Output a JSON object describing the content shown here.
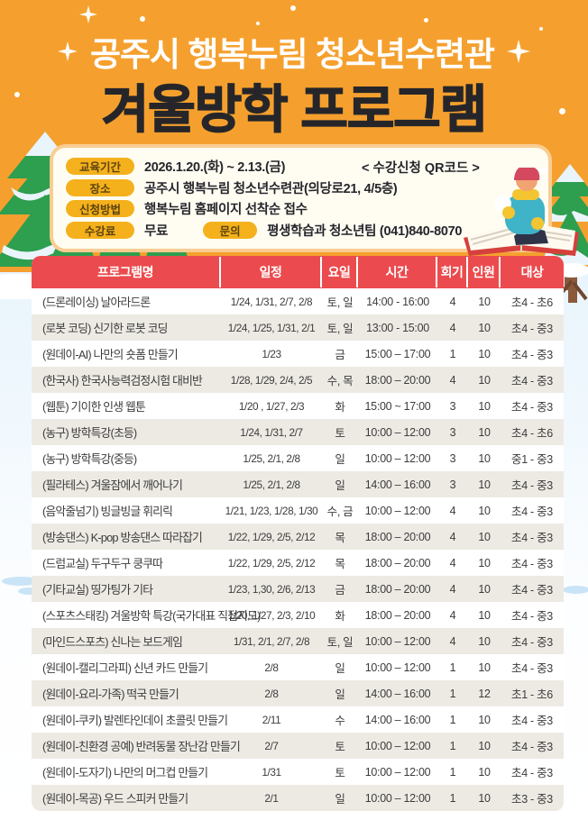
{
  "header": {
    "subtitle": "공주시 행복누림 청소년수련관",
    "title": "겨울방학 프로그램"
  },
  "info": {
    "items": [
      {
        "label": "교육기간",
        "value": "2026.1.20.(화) ~ 2.13.(금)"
      },
      {
        "label": "장소",
        "value": "공주시 행복누림 청소년수련관(의당로21, 4/5층)"
      },
      {
        "label": "신청방법",
        "value": "행복누림 홈페이지 선착순 접수"
      },
      {
        "label": "수강료",
        "value": "무료"
      }
    ],
    "qr_text": "< 수강신청 QR코드 >",
    "contact": {
      "label": "문의",
      "value": "평생학습과 청소년팀 (041)840-8070"
    }
  },
  "table": {
    "headers": [
      "프로그램명",
      "일정",
      "요일",
      "시간",
      "회기",
      "인원",
      "대상"
    ],
    "rows": [
      [
        "(드론레이싱) 날아라드론",
        "1/24, 1/31, 2/7, 2/8",
        "토, 일",
        "14:00 - 16:00",
        "4",
        "10",
        "초4 - 초6"
      ],
      [
        "(로봇 코딩) 신기한 로봇 코딩",
        "1/24, 1/25, 1/31, 2/1",
        "토, 일",
        "13:00 - 15:00",
        "4",
        "10",
        "초4 - 중3"
      ],
      [
        "(원데이-AI) 나만의 숏폼 만들기",
        "1/23",
        "금",
        "15:00 – 17:00",
        "1",
        "10",
        "초4 - 중3"
      ],
      [
        "(한국사) 한국사능력검정시험 대비반",
        "1/28, 1/29, 2/4, 2/5",
        "수, 목",
        "18:00 – 20:00",
        "4",
        "10",
        "초4 - 중3"
      ],
      [
        "(웹툰) 기이한 인생 웹툰",
        "1/20 , 1/27, 2/3",
        "화",
        "15:00 ~ 17:00",
        "3",
        "10",
        "초4 - 중3"
      ],
      [
        "(농구) 방학특강(초등)",
        "1/24, 1/31, 2/7",
        "토",
        "10:00 – 12:00",
        "3",
        "10",
        "초4 - 초6"
      ],
      [
        "(농구) 방학특강(중등)",
        "1/25, 2/1, 2/8",
        "일",
        "10:00 – 12:00",
        "3",
        "10",
        "중1 - 중3"
      ],
      [
        "(필라테스) 겨울잠에서 깨어나기",
        "1/25, 2/1, 2/8",
        "일",
        "14:00 – 16:00",
        "3",
        "10",
        "초4 - 중3"
      ],
      [
        "(음악줄넘기) 빙글빙글 휘리릭",
        "1/21, 1/23, 1/28, 1/30",
        "수, 금",
        "10:00 – 12:00",
        "4",
        "10",
        "초4 - 중3"
      ],
      [
        "(방송댄스) K-pop 방송댄스 따라잡기",
        "1/22, 1/29, 2/5, 2/12",
        "목",
        "18:00 – 20:00",
        "4",
        "10",
        "초4 - 중3"
      ],
      [
        "(드럼교실) 두구두구 쿵쿠따",
        "1/22, 1/29, 2/5, 2/12",
        "목",
        "18:00 – 20:00",
        "4",
        "10",
        "초4 - 중3"
      ],
      [
        "(기타교실) 띵가팅가 기타",
        "1/23, 1,30, 2/6, 2/13",
        "금",
        "18:00 – 20:00",
        "4",
        "10",
        "초4 - 중3"
      ],
      [
        "(스포츠스태킹) 겨울방학 특강(국가대표 직접지도)",
        "1/20, 1/27, 2/3, 2/10",
        "화",
        "18:00 – 20:00",
        "4",
        "10",
        "초4 - 중3"
      ],
      [
        "(마인드스포츠) 신나는 보드게임",
        "1/31, 2/1, 2/7, 2/8",
        "토, 일",
        "10:00 – 12:00",
        "4",
        "10",
        "초4 - 중3"
      ],
      [
        "(원데이-캘리그라피) 신년 카드 만들기",
        "2/8",
        "일",
        "10:00 – 12:00",
        "1",
        "10",
        "초4 - 중3"
      ],
      [
        "(원데이-요리-가족) 떡국 만들기",
        "2/8",
        "일",
        "14:00 – 16:00",
        "1",
        "12",
        "초1 - 초6"
      ],
      [
        "(원데이-쿠키) 발렌타인데이 초콜릿 만들기",
        "2/11",
        "수",
        "14:00 – 16:00",
        "1",
        "10",
        "초4 - 중3"
      ],
      [
        "(원데이-친환경 공예) 반려동물 장난감 만들기",
        "2/7",
        "토",
        "10:00 – 12:00",
        "1",
        "10",
        "초4 - 중3"
      ],
      [
        "(원데이-도자기) 나만의 머그컵 만들기",
        "1/31",
        "토",
        "10:00 – 12:00",
        "1",
        "10",
        "초4 - 중3"
      ],
      [
        "(원데이-목공) 우드 스피커 만들기",
        "2/1",
        "일",
        "10:00 – 12:00",
        "1",
        "10",
        "초3 - 중3"
      ]
    ]
  },
  "colors": {
    "background_orange": "#f5a02e",
    "header_red": "#eb4b4e",
    "pill_yellow": "#f4b11c",
    "row_alt": "#edeae4",
    "card_cream": "#fffdf2",
    "card_border": "#f9cd92",
    "tree_green": "#2e9e4f",
    "winter_blue": "#d9ecf8"
  }
}
